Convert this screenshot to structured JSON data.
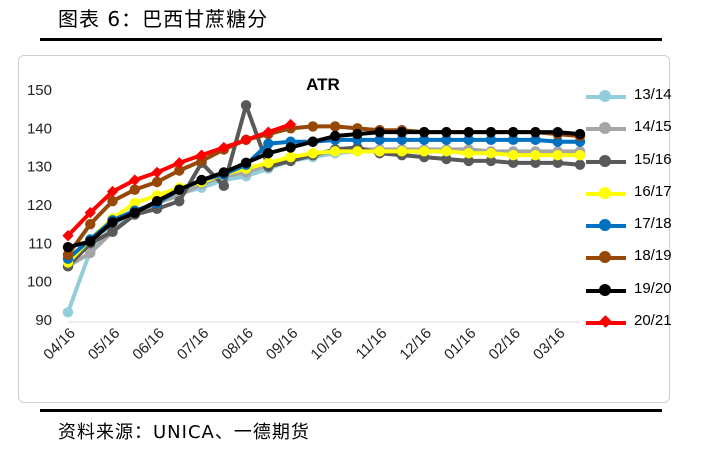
{
  "figure": {
    "title": "图表 6：巴西甘蔗糖分",
    "source": "资料来源：UNICA、一德期货"
  },
  "chart_data": {
    "type": "line",
    "title": "ATR",
    "xlabel": "",
    "ylabel": "",
    "ylim": [
      90,
      150
    ],
    "yticks": [
      90,
      100,
      110,
      120,
      130,
      140,
      150
    ],
    "x_range": [
      0,
      23
    ],
    "xticks": [
      {
        "label": "04/16",
        "x": 0
      },
      {
        "label": "05/16",
        "x": 2
      },
      {
        "label": "06/16",
        "x": 4
      },
      {
        "label": "07/16",
        "x": 6
      },
      {
        "label": "08/16",
        "x": 8
      },
      {
        "label": "09/16",
        "x": 10
      },
      {
        "label": "10/16",
        "x": 12
      },
      {
        "label": "11/16",
        "x": 14
      },
      {
        "label": "12/16",
        "x": 16
      },
      {
        "label": "01/16",
        "x": 18
      },
      {
        "label": "02/16",
        "x": 20
      },
      {
        "label": "03/16",
        "x": 22
      }
    ],
    "grid": false,
    "legend_position": "right",
    "series": [
      {
        "name": "13/14",
        "color": "#92CDDC",
        "marker": "circle",
        "values": [
          92,
          108,
          114.5,
          118.5,
          120.5,
          123,
          124.5,
          126.5,
          127.5,
          129.5,
          131.5,
          132.5,
          133.5,
          134,
          134,
          134,
          134,
          134,
          134,
          133.5,
          133.5,
          133.5,
          133.5,
          133.5
        ]
      },
      {
        "name": "14/15",
        "color": "#A6A6A6",
        "marker": "circle",
        "values": [
          104,
          107.5,
          113,
          117.5,
          120.5,
          122.5,
          125.5,
          127.5,
          128.5,
          130.5,
          132,
          133,
          134,
          134.5,
          134.5,
          134.5,
          134.5,
          134.5,
          134.5,
          134,
          134,
          134,
          134,
          134
        ]
      },
      {
        "name": "15/16",
        "color": "#595959",
        "marker": "circle",
        "values": [
          104,
          110,
          113,
          117.5,
          119,
          121,
          131,
          125,
          146,
          130,
          131.5,
          133,
          134.5,
          135,
          133.5,
          133,
          132.5,
          132,
          131.5,
          131.5,
          131,
          131,
          131,
          130.5
        ]
      },
      {
        "name": "16/17",
        "color": "#FFFF00",
        "marker": "circle",
        "values": [
          105,
          111,
          116.5,
          120.5,
          122.5,
          124.5,
          126,
          128,
          129.5,
          131,
          132.5,
          133.5,
          134,
          134,
          134,
          134,
          134,
          134,
          133.5,
          133.5,
          133,
          133,
          133,
          133
        ]
      },
      {
        "name": "17/18",
        "color": "#0070C0",
        "marker": "circle",
        "values": [
          106,
          111,
          116,
          118.5,
          120.5,
          124,
          126.5,
          128,
          130.5,
          136,
          136.5,
          136.5,
          137,
          137,
          137,
          137,
          137,
          137,
          137,
          137,
          137,
          137,
          136.5,
          136.5
        ]
      },
      {
        "name": "18/19",
        "color": "#974706",
        "marker": "circle",
        "values": [
          107,
          115,
          121,
          124,
          126,
          129,
          131.5,
          134.5,
          137,
          138.5,
          140,
          140.5,
          140.5,
          140,
          139.5,
          139.5,
          139,
          139,
          139,
          139,
          139,
          139,
          138.5,
          138
        ]
      },
      {
        "name": "19/20",
        "color": "#000000",
        "marker": "circle",
        "values": [
          109,
          110.5,
          115.5,
          118,
          121,
          124,
          126.5,
          128.5,
          131,
          133.5,
          135,
          136.5,
          138,
          138.5,
          139,
          139,
          139,
          139,
          139,
          139,
          139,
          139,
          139,
          138.5
        ]
      },
      {
        "name": "20/21",
        "color": "#FF0000",
        "marker": "diamond",
        "values": [
          112,
          118,
          123.5,
          126.5,
          128.5,
          131,
          133,
          135,
          137,
          139,
          141
        ]
      }
    ]
  }
}
